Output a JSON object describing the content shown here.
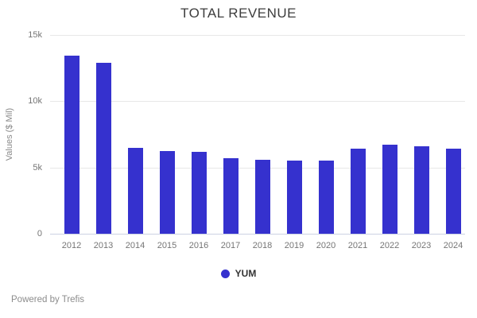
{
  "chart_data": {
    "type": "bar",
    "title": "TOTAL REVENUE",
    "xlabel": "",
    "ylabel": "Values ($ Mil)",
    "ylim": [
      0,
      15000
    ],
    "grid": true,
    "legend_position": "bottom-center",
    "categories": [
      "2012",
      "2013",
      "2014",
      "2015",
      "2016",
      "2017",
      "2018",
      "2019",
      "2020",
      "2021",
      "2022",
      "2023",
      "2024"
    ],
    "series": [
      {
        "name": "YUM",
        "values": [
          13450,
          12900,
          6500,
          6250,
          6200,
          5700,
          5600,
          5500,
          5500,
          6400,
          6700,
          6600,
          6450
        ]
      }
    ],
    "yticks": [
      {
        "value": 0,
        "label": "0"
      },
      {
        "value": 5000,
        "label": "5k"
      },
      {
        "value": 10000,
        "label": "10k"
      },
      {
        "value": 15000,
        "label": "15k"
      }
    ],
    "colors": {
      "bar": "#3531ce",
      "legend_dot": "#3531ce",
      "gridline": "#e8e8e8",
      "axis_line": "#ccd2e3",
      "tick_text": "#757575",
      "title_text": "#3d3d3d"
    }
  },
  "footer": {
    "text": "Powered by Trefis"
  }
}
